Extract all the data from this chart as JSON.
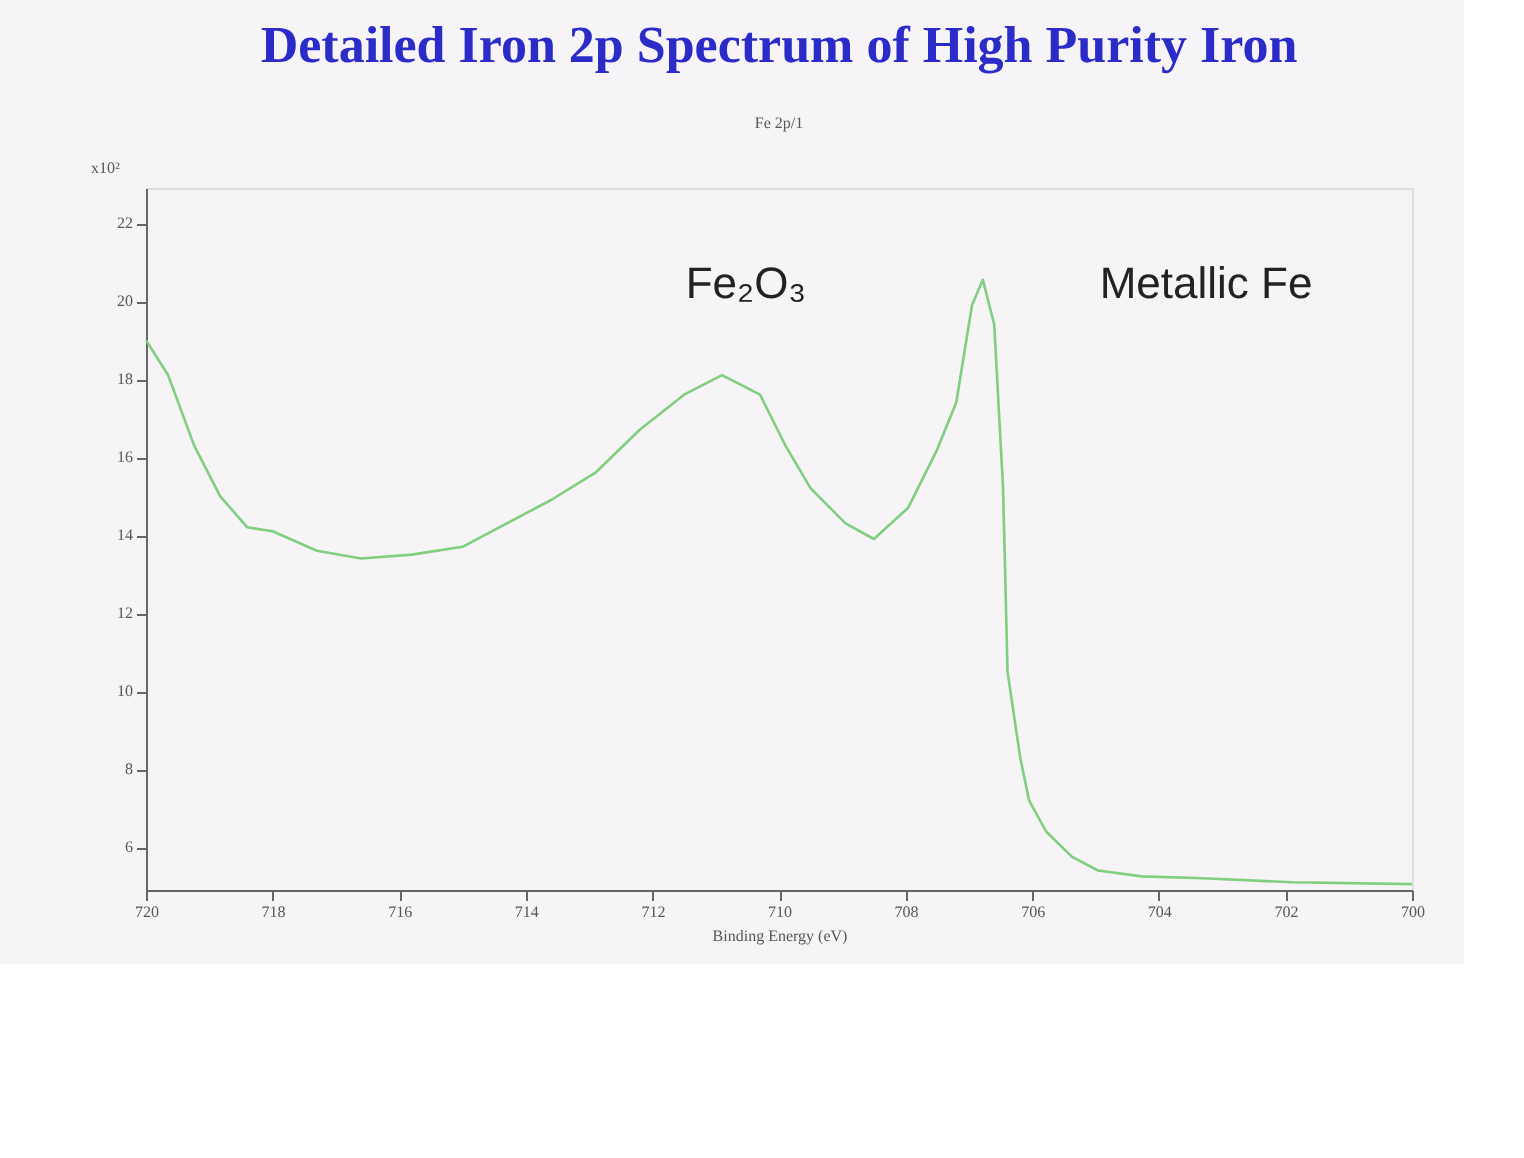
{
  "chart_data": {
    "type": "line",
    "title": "Detailed Iron 2p Spectrum of High Purity Iron",
    "subtitle": "Fe 2p/1",
    "xlabel": "Binding Energy (eV)",
    "ylabel": "x10²",
    "x": [
      720.0,
      719.65,
      719.24,
      718.83,
      718.4,
      718.0,
      717.3,
      716.6,
      715.8,
      715.0,
      714.3,
      713.6,
      712.9,
      712.2,
      711.5,
      710.9,
      710.3,
      709.9,
      709.5,
      708.95,
      708.5,
      707.96,
      707.5,
      707.2,
      706.95,
      706.78,
      706.6,
      706.46,
      706.39,
      706.19,
      706.05,
      705.78,
      705.37,
      704.96,
      704.27,
      703.3,
      701.9,
      700.0
    ],
    "series": [
      {
        "color": "#7fcf7f",
        "values": [
          19.0,
          18.1,
          16.3,
          15.0,
          14.2,
          14.1,
          13.6,
          13.4,
          13.5,
          13.7,
          14.3,
          14.9,
          15.6,
          16.7,
          17.6,
          18.1,
          17.6,
          16.3,
          15.2,
          14.3,
          13.9,
          14.7,
          16.2,
          17.4,
          19.9,
          20.55,
          19.4,
          15.2,
          10.5,
          8.3,
          7.2,
          6.4,
          5.75,
          5.4,
          5.25,
          5.2,
          5.1,
          5.05
        ]
      }
    ],
    "xlim": [
      720,
      700
    ],
    "xticks": [
      720,
      718,
      716,
      714,
      712,
      710,
      708,
      706,
      704,
      702,
      700
    ],
    "ylim": [
      4.9,
      22.9
    ],
    "yticks": [
      6,
      8,
      10,
      12,
      14,
      16,
      18,
      20,
      22
    ],
    "annotations": [
      "Fe₂O₃",
      "Metallic Fe"
    ],
    "grid": false,
    "line_style": "solid",
    "marker": "none"
  }
}
